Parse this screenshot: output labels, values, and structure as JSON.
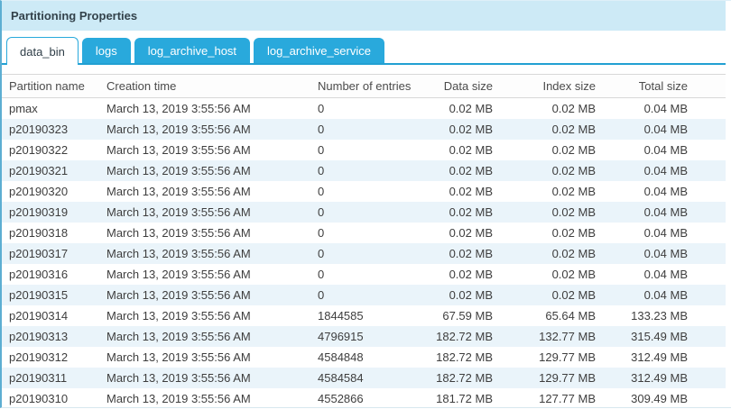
{
  "panel": {
    "title": "Partitioning Properties"
  },
  "tabs": [
    {
      "label": "data_bin",
      "active": true
    },
    {
      "label": "logs",
      "active": false
    },
    {
      "label": "log_archive_host",
      "active": false
    },
    {
      "label": "log_archive_service",
      "active": false
    }
  ],
  "table": {
    "columns": [
      "Partition name",
      "Creation time",
      "Number of entries",
      "Data size",
      "Index size",
      "Total size"
    ],
    "rows": [
      [
        "pmax",
        "March 13, 2019 3:55:56 AM",
        "0",
        "0.02 MB",
        "0.02 MB",
        "0.04 MB"
      ],
      [
        "p20190323",
        "March 13, 2019 3:55:56 AM",
        "0",
        "0.02 MB",
        "0.02 MB",
        "0.04 MB"
      ],
      [
        "p20190322",
        "March 13, 2019 3:55:56 AM",
        "0",
        "0.02 MB",
        "0.02 MB",
        "0.04 MB"
      ],
      [
        "p20190321",
        "March 13, 2019 3:55:56 AM",
        "0",
        "0.02 MB",
        "0.02 MB",
        "0.04 MB"
      ],
      [
        "p20190320",
        "March 13, 2019 3:55:56 AM",
        "0",
        "0.02 MB",
        "0.02 MB",
        "0.04 MB"
      ],
      [
        "p20190319",
        "March 13, 2019 3:55:56 AM",
        "0",
        "0.02 MB",
        "0.02 MB",
        "0.04 MB"
      ],
      [
        "p20190318",
        "March 13, 2019 3:55:56 AM",
        "0",
        "0.02 MB",
        "0.02 MB",
        "0.04 MB"
      ],
      [
        "p20190317",
        "March 13, 2019 3:55:56 AM",
        "0",
        "0.02 MB",
        "0.02 MB",
        "0.04 MB"
      ],
      [
        "p20190316",
        "March 13, 2019 3:55:56 AM",
        "0",
        "0.02 MB",
        "0.02 MB",
        "0.04 MB"
      ],
      [
        "p20190315",
        "March 13, 2019 3:55:56 AM",
        "0",
        "0.02 MB",
        "0.02 MB",
        "0.04 MB"
      ],
      [
        "p20190314",
        "March 13, 2019 3:55:56 AM",
        "1844585",
        "67.59 MB",
        "65.64 MB",
        "133.23 MB"
      ],
      [
        "p20190313",
        "March 13, 2019 3:55:56 AM",
        "4796915",
        "182.72 MB",
        "132.77 MB",
        "315.49 MB"
      ],
      [
        "p20190312",
        "March 13, 2019 3:55:56 AM",
        "4584848",
        "182.72 MB",
        "129.77 MB",
        "312.49 MB"
      ],
      [
        "p20190311",
        "March 13, 2019 3:55:56 AM",
        "4584584",
        "182.72 MB",
        "129.77 MB",
        "312.49 MB"
      ],
      [
        "p20190310",
        "March 13, 2019 3:55:56 AM",
        "4552866",
        "181.72 MB",
        "127.77 MB",
        "309.49 MB"
      ]
    ]
  },
  "colors": {
    "accent_blue": "#29a9dc",
    "tab_line_blue": "#22a0d2",
    "title_bar_bg": "#cdeaf6",
    "row_stripe": "#eaf4fa",
    "text_dark": "#3e3e3e"
  }
}
